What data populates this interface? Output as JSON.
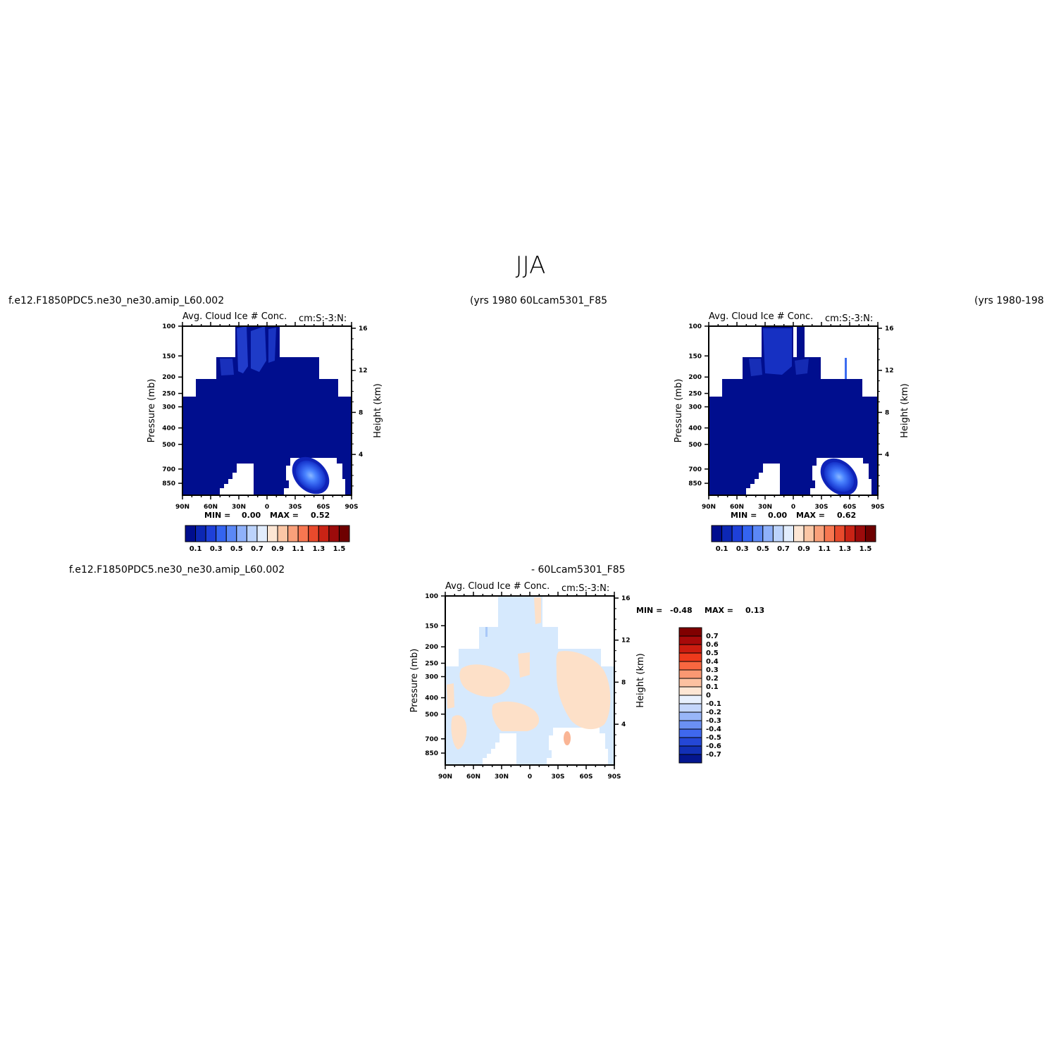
{
  "season": "JJA",
  "colors": {
    "fill_blue": "#000e8e",
    "diff_light_blue": "#d6e9fd",
    "diff_light_orange": "#fde0c8"
  },
  "chart_data": [
    {
      "type": "heatmap",
      "case_left": "f.e12.F1850PDC5.ne30_ne30.amip_L60.002",
      "case_right": "(yrs 1980",
      "title": "Avg. Cloud Ice # Conc.",
      "units": "cm:S:-3:N:",
      "ylabel": "Pressure (mb)",
      "y2label": "Height (km)",
      "x_ticks": [
        "90N",
        "60N",
        "30N",
        "0",
        "30S",
        "60S",
        "90S"
      ],
      "y_ticks": [
        "100",
        "150",
        "200",
        "250",
        "300",
        "400",
        "500",
        "700",
        "850"
      ],
      "y2_ticks": [
        "16",
        "12",
        "8",
        "4"
      ],
      "min_label": "MIN =",
      "min_value": "0.00",
      "max_label": "MAX =",
      "max_value": "0.52",
      "colorbar_labels": [
        "0.1",
        "0.3",
        "0.5",
        "0.7",
        "0.9",
        "1.1",
        "1.3",
        "1.5"
      ]
    },
    {
      "type": "heatmap",
      "case_left": "60Lcam5301_F85",
      "case_right": "(yrs 1980-198",
      "title": "Avg. Cloud Ice # Conc.",
      "units": "cm:S:-3:N:",
      "ylabel": "Pressure (mb)",
      "y2label": "Height (km)",
      "x_ticks": [
        "90N",
        "60N",
        "30N",
        "0",
        "30S",
        "60S",
        "90S"
      ],
      "y_ticks": [
        "100",
        "150",
        "200",
        "250",
        "300",
        "400",
        "500",
        "700",
        "850"
      ],
      "y2_ticks": [
        "16",
        "12",
        "8",
        "4"
      ],
      "min_label": "MIN =",
      "min_value": "0.00",
      "max_label": "MAX =",
      "max_value": "0.62",
      "colorbar_labels": [
        "0.1",
        "0.3",
        "0.5",
        "0.7",
        "0.9",
        "1.1",
        "1.3",
        "1.5"
      ]
    },
    {
      "type": "heatmap",
      "case_left": "f.e12.F1850PDC5.ne30_ne30.amip_L60.002",
      "case_right": "- 60Lcam5301_F85",
      "title": "Avg. Cloud Ice # Conc.",
      "units": "cm:S:-3:N:",
      "ylabel": "Pressure (mb)",
      "y2label": "Height (km)",
      "x_ticks": [
        "90N",
        "60N",
        "30N",
        "0",
        "30S",
        "60S",
        "90S"
      ],
      "y_ticks": [
        "100",
        "150",
        "200",
        "250",
        "300",
        "400",
        "500",
        "700",
        "850"
      ],
      "y2_ticks": [
        "16",
        "12",
        "8",
        "4"
      ],
      "min_label": "MIN =",
      "min_value": "-0.48",
      "max_label": "MAX =",
      "max_value": "0.13",
      "colorbar_labels": [
        "0.7",
        "0.6",
        "0.5",
        "0.4",
        "0.3",
        "0.2",
        "0.1",
        "0",
        "-0.1",
        "-0.2",
        "-0.3",
        "-0.4",
        "-0.5",
        "-0.6",
        "-0.7"
      ]
    }
  ]
}
